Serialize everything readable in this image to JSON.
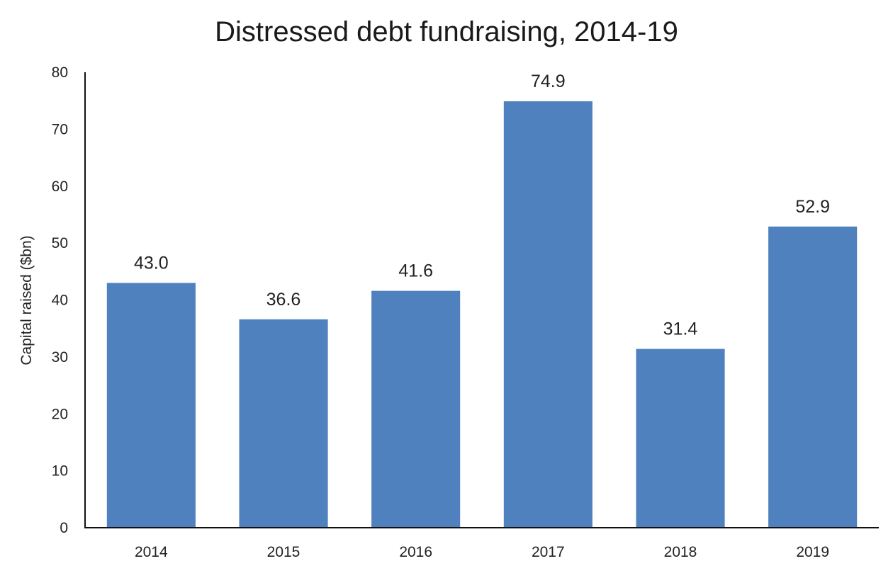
{
  "chart_data": {
    "type": "bar",
    "title": "Distressed debt fundraising, 2014-19",
    "xlabel": "",
    "ylabel": "Capital raised ($bn)",
    "categories": [
      "2014",
      "2015",
      "2016",
      "2017",
      "2018",
      "2019"
    ],
    "values": [
      43.0,
      36.6,
      41.6,
      74.9,
      31.4,
      52.9
    ],
    "data_labels": [
      "43.0",
      "36.6",
      "41.6",
      "74.9",
      "31.4",
      "52.9"
    ],
    "ylim": [
      0,
      80
    ],
    "yticks": [
      "0",
      "10",
      "20",
      "30",
      "40",
      "50",
      "60",
      "70",
      "80"
    ],
    "grid": false,
    "legend": "none",
    "bar_color": "#4E81BD"
  }
}
